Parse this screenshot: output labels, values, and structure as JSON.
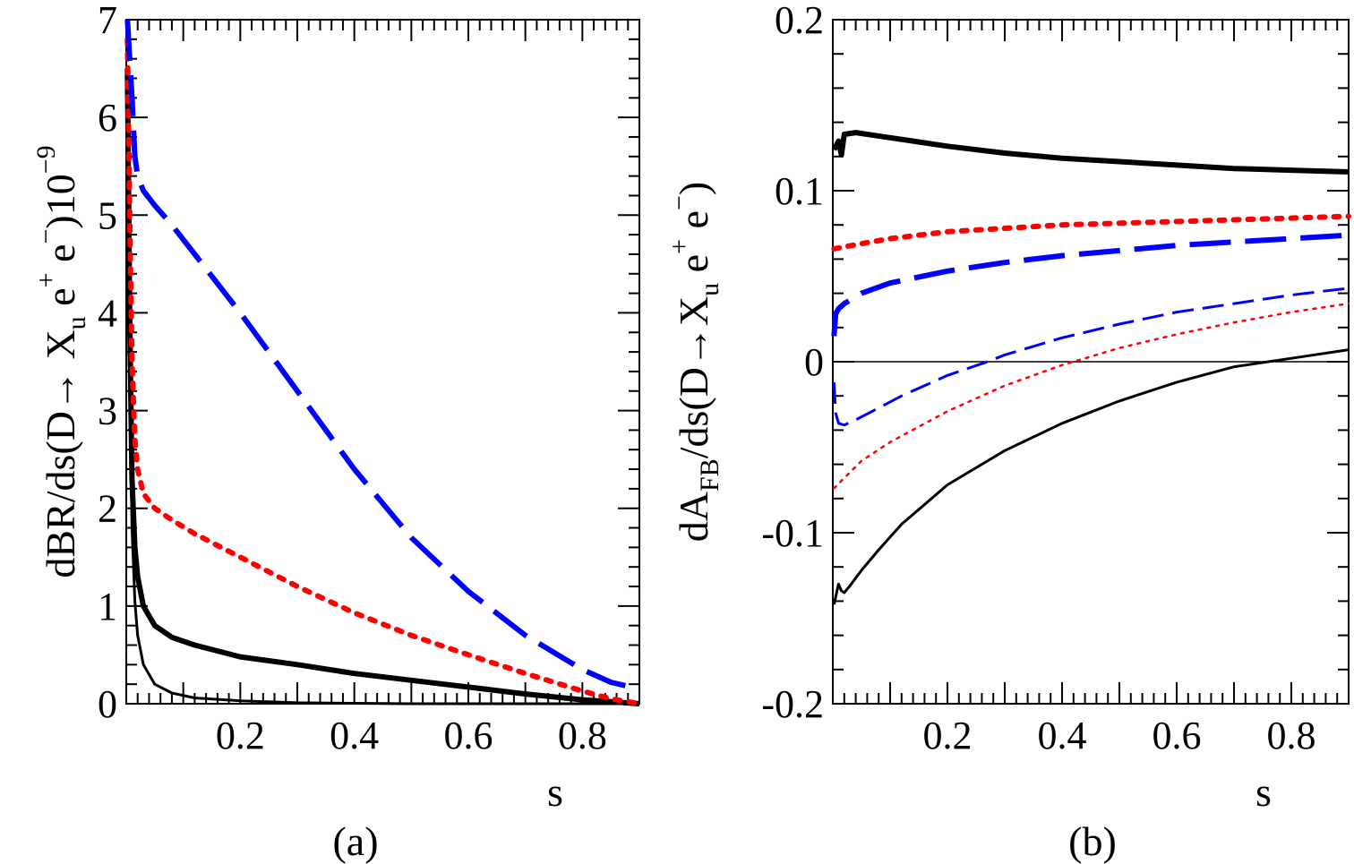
{
  "colors": {
    "black": "#000000",
    "red": "#ff0000",
    "blue": "#0000ff"
  },
  "chart_data": [
    {
      "type": "line",
      "panel_label": "(a)",
      "xlabel": "s",
      "ylabel_parts": {
        "main": "dBR/ds(D→ X",
        "sub_u": "u",
        "e1": " e",
        "sup_plus": "+",
        "e2": " e",
        "sup_minus": "−",
        "tail": ")10",
        "exp": "−9"
      },
      "xlim": [
        0.0,
        0.9
      ],
      "ylim": [
        0,
        7
      ],
      "xticks": [
        0.2,
        0.4,
        0.6,
        0.8
      ],
      "xtick_labels": [
        "0.2",
        "0.4",
        "0.6",
        "0.8"
      ],
      "yticks": [
        0,
        1,
        2,
        3,
        4,
        5,
        6,
        7
      ],
      "ytick_labels": [
        "0",
        "1",
        "2",
        "3",
        "4",
        "5",
        "6",
        "7"
      ],
      "series": [
        {
          "color": "#000000",
          "style": "solid-thick",
          "x": [
            0.002,
            0.006,
            0.01,
            0.015,
            0.02,
            0.03,
            0.05,
            0.08,
            0.12,
            0.2,
            0.3,
            0.4,
            0.5,
            0.6,
            0.7,
            0.8,
            0.85,
            0.9
          ],
          "y": [
            6.5,
            4.0,
            2.3,
            1.6,
            1.3,
            1.0,
            0.8,
            0.68,
            0.6,
            0.48,
            0.4,
            0.31,
            0.24,
            0.17,
            0.1,
            0.04,
            0.02,
            0.0
          ]
        },
        {
          "color": "#000000",
          "style": "solid-thin",
          "x": [
            0.002,
            0.006,
            0.01,
            0.015,
            0.02,
            0.03,
            0.05,
            0.08,
            0.12,
            0.2,
            0.3,
            0.4,
            0.5,
            0.6,
            0.7,
            0.8,
            0.9
          ],
          "y": [
            6.0,
            3.2,
            1.8,
            1.05,
            0.7,
            0.4,
            0.2,
            0.11,
            0.06,
            0.03,
            0.01,
            0.005,
            0.0,
            0.0,
            0.0,
            0.0,
            0.0
          ]
        },
        {
          "color": "#ff0000",
          "style": "dotted-thick",
          "x": [
            0.002,
            0.006,
            0.01,
            0.015,
            0.02,
            0.03,
            0.05,
            0.08,
            0.12,
            0.2,
            0.3,
            0.4,
            0.5,
            0.6,
            0.7,
            0.8,
            0.85,
            0.88,
            0.9
          ],
          "y": [
            6.8,
            5.0,
            3.5,
            2.7,
            2.4,
            2.15,
            2.0,
            1.88,
            1.74,
            1.5,
            1.2,
            0.93,
            0.7,
            0.5,
            0.31,
            0.13,
            0.05,
            0.02,
            0.0
          ]
        },
        {
          "color": "#0000ff",
          "style": "dashed-thick",
          "x": [
            0.002,
            0.006,
            0.01,
            0.015,
            0.02,
            0.03,
            0.05,
            0.08,
            0.12,
            0.2,
            0.3,
            0.4,
            0.5,
            0.6,
            0.7,
            0.8,
            0.85,
            0.9
          ],
          "y": [
            7.0,
            6.6,
            6.2,
            5.6,
            5.4,
            5.25,
            5.1,
            4.9,
            4.6,
            4.0,
            3.2,
            2.4,
            1.7,
            1.15,
            0.7,
            0.35,
            0.22,
            0.15
          ]
        }
      ]
    },
    {
      "type": "line",
      "panel_label": "(b)",
      "xlabel": "s",
      "ylabel_parts": {
        "main": "dA",
        "sub_fb": "FB",
        "mid": "/ds(D→X",
        "sub_u": "u",
        "e1": " e",
        "sup_plus": "+",
        "e2": " e",
        "sup_minus": "−",
        "tail": ")"
      },
      "xlim": [
        0.0,
        0.9
      ],
      "ylim": [
        -0.2,
        0.2
      ],
      "xticks": [
        0.2,
        0.4,
        0.6,
        0.8
      ],
      "xtick_labels": [
        "0.2",
        "0.4",
        "0.6",
        "0.8"
      ],
      "yticks": [
        -0.2,
        -0.1,
        0,
        0.1,
        0.2
      ],
      "ytick_labels": [
        "-0.2",
        "-0.1",
        "0",
        "0.1",
        "0.2"
      ],
      "zero_line": true,
      "series": [
        {
          "color": "#000000",
          "style": "solid-thick",
          "x": [
            0.002,
            0.01,
            0.015,
            0.02,
            0.04,
            0.1,
            0.2,
            0.3,
            0.4,
            0.5,
            0.6,
            0.7,
            0.8,
            0.9
          ],
          "y": [
            0.124,
            0.129,
            0.121,
            0.133,
            0.134,
            0.131,
            0.126,
            0.122,
            0.119,
            0.117,
            0.115,
            0.113,
            0.112,
            0.111
          ]
        },
        {
          "color": "#000000",
          "style": "solid-thin",
          "x": [
            0.002,
            0.01,
            0.015,
            0.02,
            0.03,
            0.05,
            0.08,
            0.12,
            0.2,
            0.3,
            0.4,
            0.5,
            0.6,
            0.7,
            0.8,
            0.9
          ],
          "y": [
            -0.142,
            -0.13,
            -0.134,
            -0.135,
            -0.131,
            -0.122,
            -0.11,
            -0.095,
            -0.072,
            -0.052,
            -0.036,
            -0.023,
            -0.012,
            -0.003,
            0.002,
            0.007
          ]
        },
        {
          "color": "#ff0000",
          "style": "dotted-thick",
          "x": [
            0.002,
            0.05,
            0.1,
            0.2,
            0.3,
            0.4,
            0.5,
            0.6,
            0.7,
            0.8,
            0.9
          ],
          "y": [
            0.066,
            0.069,
            0.072,
            0.076,
            0.078,
            0.08,
            0.081,
            0.082,
            0.083,
            0.084,
            0.085
          ]
        },
        {
          "color": "#ff0000",
          "style": "dotted-thin",
          "x": [
            0.002,
            0.02,
            0.05,
            0.1,
            0.15,
            0.2,
            0.3,
            0.4,
            0.5,
            0.6,
            0.7,
            0.8,
            0.9
          ],
          "y": [
            -0.074,
            -0.068,
            -0.058,
            -0.047,
            -0.038,
            -0.029,
            -0.014,
            -0.002,
            0.008,
            0.016,
            0.023,
            0.029,
            0.034
          ]
        },
        {
          "color": "#0000ff",
          "style": "dashed-thick",
          "x": [
            0.002,
            0.005,
            0.01,
            0.02,
            0.05,
            0.1,
            0.2,
            0.3,
            0.4,
            0.5,
            0.6,
            0.7,
            0.8,
            0.9
          ],
          "y": [
            0.015,
            0.028,
            0.031,
            0.034,
            0.04,
            0.046,
            0.053,
            0.058,
            0.062,
            0.065,
            0.068,
            0.07,
            0.072,
            0.074
          ]
        },
        {
          "color": "#0000ff",
          "style": "dashed-thin",
          "x": [
            0.002,
            0.005,
            0.01,
            0.02,
            0.04,
            0.08,
            0.12,
            0.2,
            0.27,
            0.3,
            0.4,
            0.5,
            0.6,
            0.7,
            0.8,
            0.9
          ],
          "y": [
            -0.012,
            -0.03,
            -0.036,
            -0.037,
            -0.034,
            -0.027,
            -0.02,
            -0.008,
            0.0,
            0.004,
            0.014,
            0.022,
            0.029,
            0.034,
            0.039,
            0.043
          ]
        }
      ]
    }
  ]
}
